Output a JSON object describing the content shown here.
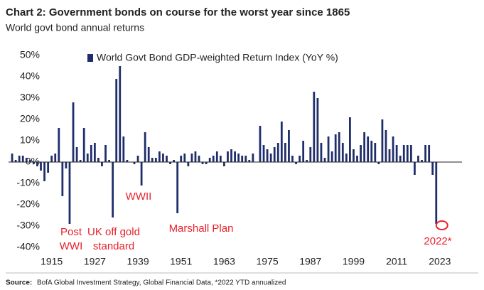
{
  "chart_data": {
    "type": "bar",
    "title": "Chart 2: Government bonds on course for the worst year since 1865",
    "subtitle": "World govt bond annual returns",
    "source_label": "Source:",
    "source": "BofA Global Investment Strategy, Global Financial Data, *2022 YTD annualized",
    "x": [
      1904,
      1905,
      1906,
      1907,
      1908,
      1909,
      1910,
      1911,
      1912,
      1913,
      1914,
      1915,
      1916,
      1917,
      1918,
      1919,
      1920,
      1921,
      1922,
      1923,
      1924,
      1925,
      1926,
      1927,
      1928,
      1929,
      1930,
      1931,
      1932,
      1933,
      1934,
      1935,
      1936,
      1937,
      1938,
      1939,
      1940,
      1941,
      1942,
      1943,
      1944,
      1945,
      1946,
      1947,
      1948,
      1949,
      1950,
      1951,
      1952,
      1953,
      1954,
      1955,
      1956,
      1957,
      1958,
      1959,
      1960,
      1961,
      1962,
      1963,
      1964,
      1965,
      1966,
      1967,
      1968,
      1969,
      1970,
      1971,
      1972,
      1973,
      1974,
      1975,
      1976,
      1977,
      1978,
      1979,
      1980,
      1981,
      1982,
      1983,
      1984,
      1985,
      1986,
      1987,
      1988,
      1989,
      1990,
      1991,
      1992,
      1993,
      1994,
      1995,
      1996,
      1997,
      1998,
      1999,
      2000,
      2001,
      2002,
      2003,
      2004,
      2005,
      2006,
      2007,
      2008,
      2009,
      2010,
      2011,
      2012,
      2013,
      2014,
      2015,
      2016,
      2017,
      2018,
      2019,
      2020,
      2021,
      2022
    ],
    "series": [
      {
        "name": "World Govt Bond GDP-weighted Return Index (YoY %)",
        "color": "#1f2d6b",
        "values": [
          4,
          1,
          3,
          3,
          2,
          1,
          -1,
          -2,
          -4,
          -9,
          -5,
          3,
          4,
          16,
          -16,
          -3,
          -29,
          28,
          7,
          1,
          16,
          4,
          8,
          9,
          2,
          -2,
          8,
          1,
          -26,
          39,
          45,
          12,
          1,
          0,
          -1,
          3,
          -11,
          14,
          7,
          2,
          2,
          5,
          4,
          3,
          -1,
          1,
          -24,
          3,
          4,
          -2,
          4,
          5,
          3,
          -1,
          -1,
          2,
          3,
          5,
          3,
          -2,
          5,
          6,
          5,
          4,
          3,
          3,
          1,
          4,
          0,
          17,
          8,
          6,
          4,
          7,
          9,
          19,
          9,
          15,
          3,
          -1,
          3,
          10,
          1,
          7,
          33,
          30,
          9,
          2,
          12,
          5,
          13,
          14,
          9,
          4,
          21,
          6,
          3,
          8,
          14,
          12,
          10,
          9,
          -1,
          20,
          15,
          6,
          12,
          8,
          3,
          8,
          8,
          8,
          -6,
          3,
          1,
          8,
          8,
          -6,
          -29
        ]
      }
    ],
    "xlim": [
      1903,
      2026
    ],
    "xticks": [
      1915,
      1927,
      1939,
      1951,
      1963,
      1975,
      1987,
      1999,
      2011,
      2023
    ],
    "ylim": [
      -42,
      52
    ],
    "yticks": [
      {
        "value": -40,
        "label": "-40%"
      },
      {
        "value": -30,
        "label": "-30%"
      },
      {
        "value": -20,
        "label": "-20%"
      },
      {
        "value": -10,
        "label": "-10%"
      },
      {
        "value": 0,
        "label": "0%"
      },
      {
        "value": 10,
        "label": "10%"
      },
      {
        "value": 20,
        "label": "20%"
      },
      {
        "value": 30,
        "label": "30%"
      },
      {
        "value": 40,
        "label": "40%"
      },
      {
        "value": 50,
        "label": "50%"
      }
    ],
    "annotations": [
      {
        "lines": [
          "Post",
          "WWI"
        ],
        "color": "#e8202a"
      },
      {
        "lines": [
          "UK off gold",
          "standard"
        ],
        "color": "#e8202a"
      },
      {
        "lines": [
          "WWII"
        ],
        "color": "#e8202a"
      },
      {
        "lines": [
          "Marshall Plan"
        ],
        "color": "#e8202a"
      },
      {
        "lines": [
          "2022*"
        ],
        "color": "#e8202a"
      }
    ],
    "grid": false
  }
}
